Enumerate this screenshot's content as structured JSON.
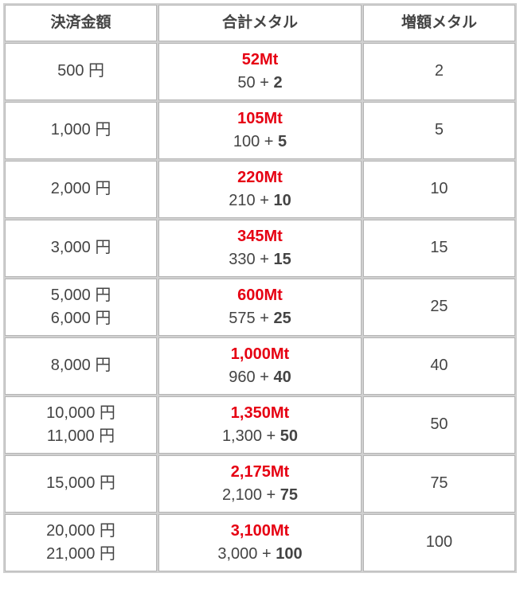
{
  "colors": {
    "text": "#444444",
    "accent_red": "#e60012",
    "grid": "#b5b5b5",
    "gap_bg": "#d0d0d0",
    "cell_bg": "#ffffff"
  },
  "headers": {
    "amount": "決済金額",
    "total_metal": "合計メタル",
    "bonus_metal": "増額メタル"
  },
  "currency_suffix": "円",
  "mt_suffix": "Mt",
  "plus": " + ",
  "rows": [
    {
      "amounts": [
        "500"
      ],
      "total_mt": "52",
      "base": "50",
      "bonus_in_sum": "2",
      "bonus": "2"
    },
    {
      "amounts": [
        "1,000"
      ],
      "total_mt": "105",
      "base": "100",
      "bonus_in_sum": "5",
      "bonus": "5"
    },
    {
      "amounts": [
        "2,000"
      ],
      "total_mt": "220",
      "base": "210",
      "bonus_in_sum": "10",
      "bonus": "10"
    },
    {
      "amounts": [
        "3,000"
      ],
      "total_mt": "345",
      "base": "330",
      "bonus_in_sum": "15",
      "bonus": "15"
    },
    {
      "amounts": [
        "5,000",
        "6,000"
      ],
      "total_mt": "600",
      "base": "575",
      "bonus_in_sum": "25",
      "bonus": "25"
    },
    {
      "amounts": [
        "8,000"
      ],
      "total_mt": "1,000",
      "base": "960",
      "bonus_in_sum": "40",
      "bonus": "40"
    },
    {
      "amounts": [
        "10,000",
        "11,000"
      ],
      "total_mt": "1,350",
      "base": "1,300",
      "bonus_in_sum": "50",
      "bonus": "50"
    },
    {
      "amounts": [
        "15,000"
      ],
      "total_mt": "2,175",
      "base": "2,100",
      "bonus_in_sum": "75",
      "bonus": "75"
    },
    {
      "amounts": [
        "20,000",
        "21,000"
      ],
      "total_mt": "3,100",
      "base": "3,000",
      "bonus_in_sum": "100",
      "bonus": "100"
    }
  ]
}
